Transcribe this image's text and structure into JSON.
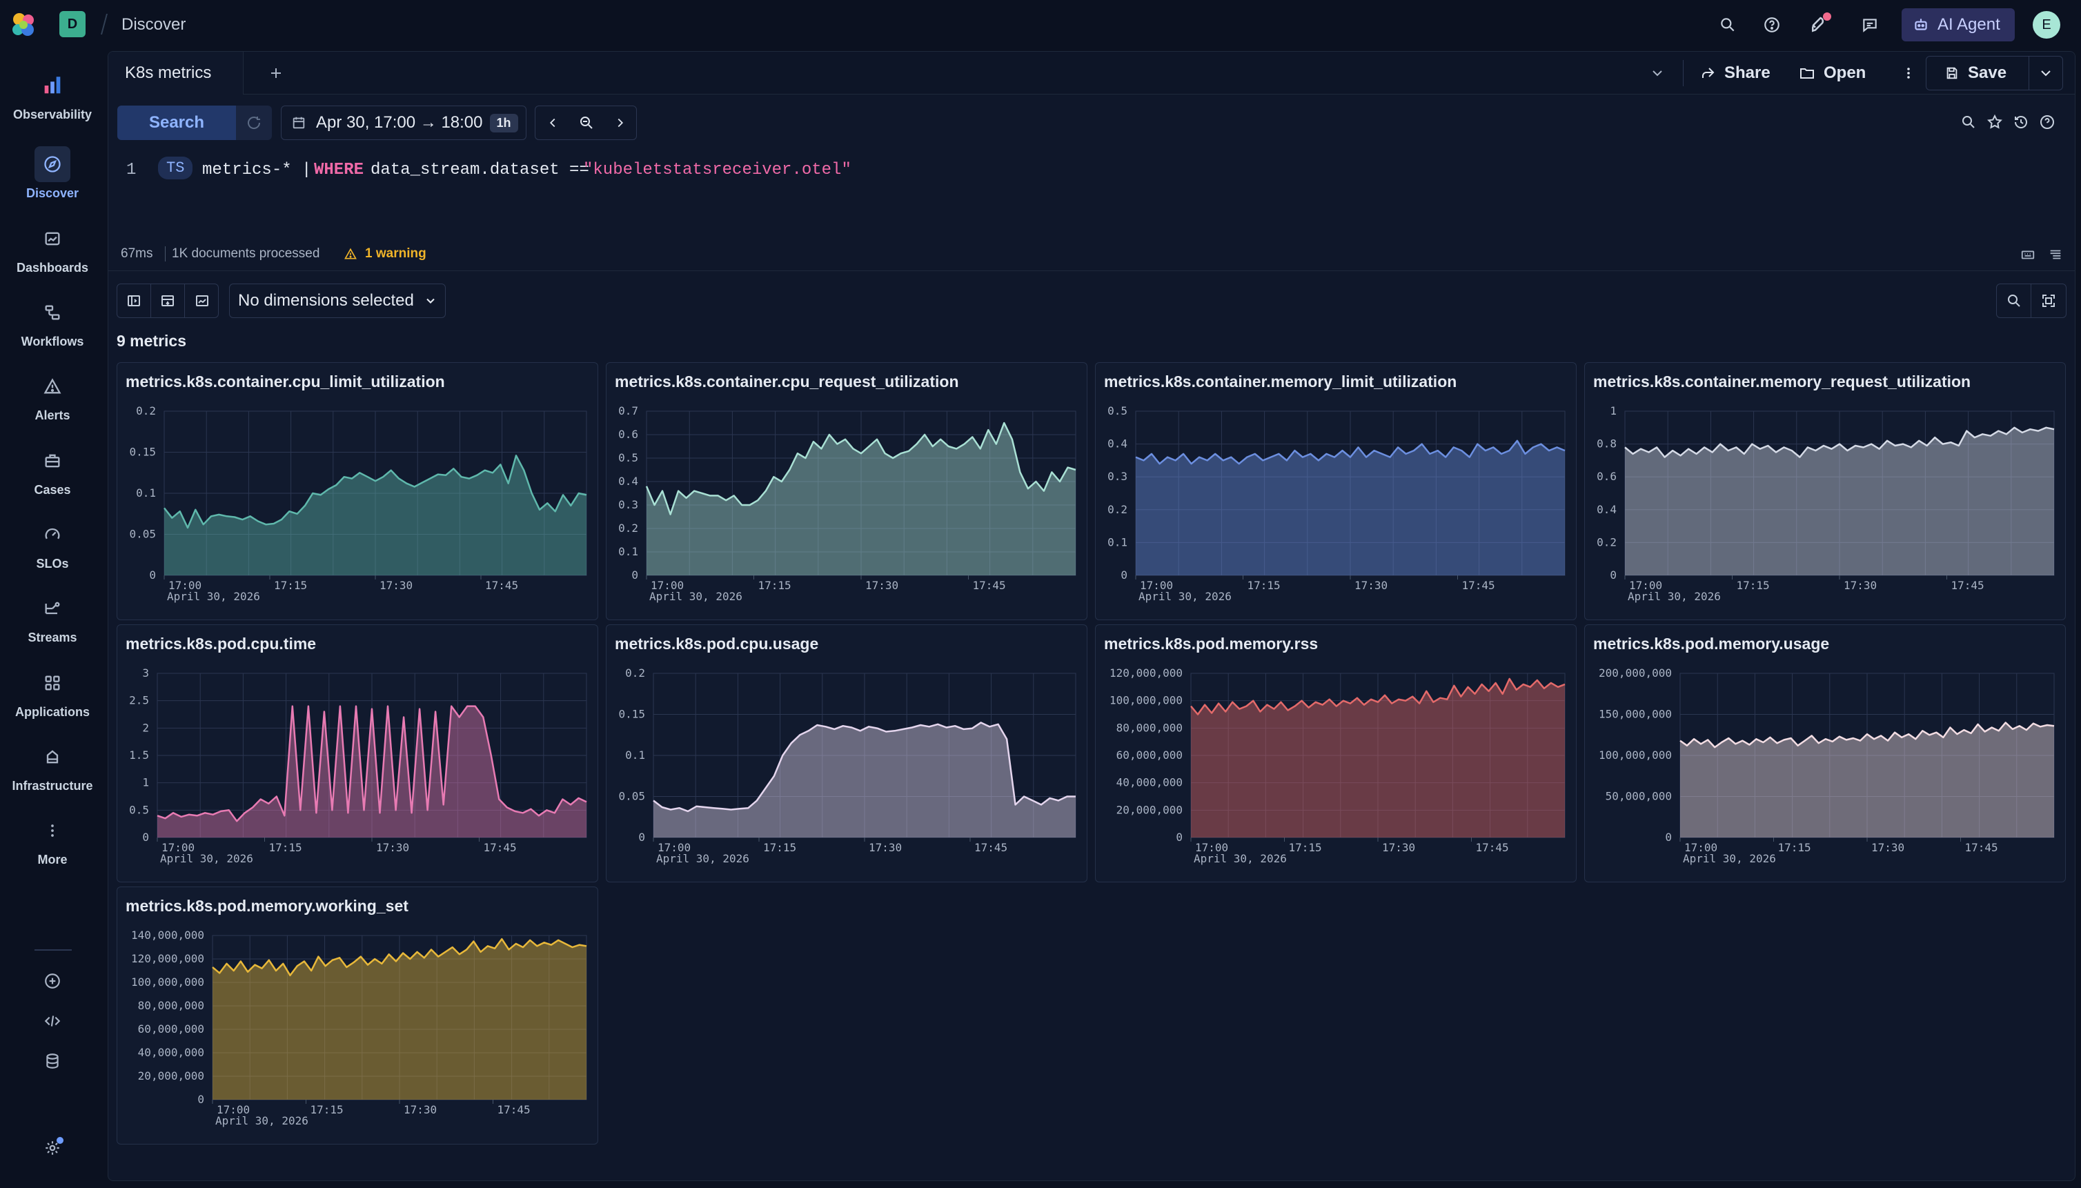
{
  "top": {
    "space_letter": "D",
    "breadcrumb": "Discover",
    "ai_agent": "AI Agent",
    "avatar_letter": "E"
  },
  "nav": [
    {
      "label": "Observability",
      "icon": "observability-icon"
    },
    {
      "label": "Discover",
      "icon": "discover-icon"
    },
    {
      "label": "Dashboards",
      "icon": "dashboards-icon"
    },
    {
      "label": "Workflows",
      "icon": "workflows-icon"
    },
    {
      "label": "Alerts",
      "icon": "alerts-icon"
    },
    {
      "label": "Cases",
      "icon": "cases-icon"
    },
    {
      "label": "SLOs",
      "icon": "slos-icon"
    },
    {
      "label": "Streams",
      "icon": "streams-icon"
    },
    {
      "label": "Applications",
      "icon": "applications-icon"
    },
    {
      "label": "Infrastructure",
      "icon": "infrastructure-icon"
    },
    {
      "label": "More",
      "icon": "more-icon"
    }
  ],
  "tabs": {
    "active": "K8s metrics"
  },
  "toolbar": {
    "share": "Share",
    "open": "Open",
    "save": "Save"
  },
  "query_bar": {
    "search": "Search",
    "time_range": "Apr 30, 17:00 → 18:00",
    "duration": "1h"
  },
  "query": {
    "line_number": "1",
    "command": "TS",
    "source": "metrics-* |",
    "keyword": "WHERE",
    "field": "data_stream.dataset ==",
    "value": "\"kubeletstatsreceiver.otel\""
  },
  "status": {
    "time": "67ms",
    "docs": "1K documents processed",
    "warning": "1 warning"
  },
  "dimensions": {
    "selected": "No dimensions selected"
  },
  "metrics_count": "9 metrics",
  "colors": {
    "teal": "#5fb8ac",
    "mint": "#a9e0d4",
    "blue": "#6c8fe0",
    "gray": "#d5dae6",
    "pink": "#e87bb3",
    "lilac": "#e5d6ee",
    "red": "#e46a6a",
    "rose": "#f3dde3",
    "gold": "#e8b83a",
    "accent": "#6e9cff",
    "warning": "#f0b429"
  },
  "chart_data": [
    {
      "type": "area",
      "title": "metrics.k8s.container.cpu_limit_utilization",
      "x_ticks": [
        "17:00",
        "17:15",
        "17:30",
        "17:45"
      ],
      "x_date": "April 30, 2026",
      "y_ticks": [
        "0",
        "0.05",
        "0.1",
        "0.15",
        "0.2"
      ],
      "ylim": [
        0,
        0.2
      ],
      "color": "teal",
      "values": [
        0.082,
        0.07,
        0.078,
        0.058,
        0.08,
        0.062,
        0.072,
        0.074,
        0.072,
        0.071,
        0.068,
        0.072,
        0.066,
        0.062,
        0.063,
        0.068,
        0.078,
        0.075,
        0.085,
        0.1,
        0.098,
        0.105,
        0.11,
        0.12,
        0.118,
        0.125,
        0.12,
        0.115,
        0.12,
        0.128,
        0.118,
        0.112,
        0.108,
        0.113,
        0.118,
        0.123,
        0.122,
        0.13,
        0.12,
        0.118,
        0.122,
        0.128,
        0.125,
        0.135,
        0.112,
        0.146,
        0.128,
        0.1,
        0.08,
        0.088,
        0.078,
        0.098,
        0.085,
        0.1,
        0.098
      ]
    },
    {
      "type": "area",
      "title": "metrics.k8s.container.cpu_request_utilization",
      "x_ticks": [
        "17:00",
        "17:15",
        "17:30",
        "17:45"
      ],
      "x_date": "April 30, 2026",
      "y_ticks": [
        "0",
        "0.1",
        "0.2",
        "0.3",
        "0.4",
        "0.5",
        "0.6",
        "0.7"
      ],
      "ylim": [
        0,
        0.7
      ],
      "color": "mint",
      "values": [
        0.38,
        0.3,
        0.36,
        0.26,
        0.36,
        0.33,
        0.36,
        0.35,
        0.34,
        0.34,
        0.32,
        0.34,
        0.3,
        0.3,
        0.32,
        0.36,
        0.42,
        0.4,
        0.45,
        0.52,
        0.5,
        0.57,
        0.54,
        0.6,
        0.56,
        0.58,
        0.54,
        0.52,
        0.55,
        0.58,
        0.52,
        0.5,
        0.52,
        0.53,
        0.56,
        0.6,
        0.55,
        0.58,
        0.55,
        0.54,
        0.56,
        0.59,
        0.54,
        0.62,
        0.56,
        0.65,
        0.58,
        0.44,
        0.37,
        0.4,
        0.36,
        0.44,
        0.4,
        0.46,
        0.45
      ]
    },
    {
      "type": "area",
      "title": "metrics.k8s.container.memory_limit_utilization",
      "x_ticks": [
        "17:00",
        "17:15",
        "17:30",
        "17:45"
      ],
      "x_date": "April 30, 2026",
      "y_ticks": [
        "0",
        "0.1",
        "0.2",
        "0.3",
        "0.4",
        "0.5"
      ],
      "ylim": [
        0,
        0.5
      ],
      "color": "blue",
      "values": [
        0.36,
        0.35,
        0.37,
        0.34,
        0.36,
        0.35,
        0.37,
        0.34,
        0.36,
        0.35,
        0.37,
        0.35,
        0.36,
        0.34,
        0.36,
        0.37,
        0.35,
        0.36,
        0.37,
        0.35,
        0.38,
        0.36,
        0.37,
        0.35,
        0.37,
        0.36,
        0.38,
        0.36,
        0.39,
        0.36,
        0.38,
        0.37,
        0.36,
        0.39,
        0.37,
        0.38,
        0.4,
        0.37,
        0.38,
        0.36,
        0.39,
        0.38,
        0.36,
        0.4,
        0.38,
        0.39,
        0.37,
        0.38,
        0.41,
        0.37,
        0.39,
        0.4,
        0.38,
        0.39,
        0.38
      ]
    },
    {
      "type": "area",
      "title": "metrics.k8s.container.memory_request_utilization",
      "x_ticks": [
        "17:00",
        "17:15",
        "17:30",
        "17:45"
      ],
      "x_date": "April 30, 2026",
      "y_ticks": [
        "0",
        "0.2",
        "0.4",
        "0.6",
        "0.8",
        "1"
      ],
      "ylim": [
        0,
        1
      ],
      "color": "gray",
      "values": [
        0.78,
        0.74,
        0.77,
        0.75,
        0.78,
        0.72,
        0.76,
        0.73,
        0.77,
        0.74,
        0.78,
        0.75,
        0.8,
        0.76,
        0.78,
        0.74,
        0.8,
        0.77,
        0.79,
        0.75,
        0.78,
        0.76,
        0.72,
        0.78,
        0.76,
        0.79,
        0.77,
        0.8,
        0.76,
        0.79,
        0.78,
        0.8,
        0.77,
        0.82,
        0.79,
        0.8,
        0.78,
        0.82,
        0.79,
        0.84,
        0.8,
        0.81,
        0.79,
        0.88,
        0.84,
        0.86,
        0.85,
        0.88,
        0.86,
        0.9,
        0.87,
        0.89,
        0.88,
        0.9,
        0.89
      ]
    },
    {
      "type": "area",
      "title": "metrics.k8s.pod.cpu.time",
      "x_ticks": [
        "17:00",
        "17:15",
        "17:30",
        "17:45"
      ],
      "x_date": "April 30, 2026",
      "y_ticks": [
        "0",
        "0.5",
        "1",
        "1.5",
        "2",
        "2.5",
        "3"
      ],
      "ylim": [
        0,
        3
      ],
      "color": "pink",
      "values": [
        0.4,
        0.35,
        0.45,
        0.38,
        0.42,
        0.4,
        0.45,
        0.42,
        0.48,
        0.5,
        0.3,
        0.45,
        0.55,
        0.7,
        0.62,
        0.75,
        0.4,
        2.4,
        0.5,
        2.4,
        0.45,
        2.3,
        0.5,
        2.4,
        0.45,
        2.4,
        0.5,
        2.35,
        0.45,
        2.4,
        0.5,
        2.2,
        0.45,
        2.35,
        0.5,
        2.3,
        0.6,
        2.4,
        2.2,
        2.4,
        2.4,
        2.2,
        1.5,
        0.7,
        0.55,
        0.48,
        0.45,
        0.52,
        0.4,
        0.5,
        0.45,
        0.7,
        0.6,
        0.72,
        0.65
      ]
    },
    {
      "type": "area",
      "title": "metrics.k8s.pod.cpu.usage",
      "x_ticks": [
        "17:00",
        "17:15",
        "17:30",
        "17:45"
      ],
      "x_date": "April 30, 2026",
      "y_ticks": [
        "0",
        "0.05",
        "0.1",
        "0.15",
        "0.2"
      ],
      "ylim": [
        0,
        0.2
      ],
      "color": "lilac",
      "values": [
        0.045,
        0.037,
        0.034,
        0.036,
        0.032,
        0.038,
        0.037,
        0.036,
        0.035,
        0.034,
        0.035,
        0.036,
        0.045,
        0.06,
        0.075,
        0.1,
        0.115,
        0.125,
        0.13,
        0.137,
        0.135,
        0.132,
        0.136,
        0.134,
        0.13,
        0.135,
        0.133,
        0.129,
        0.13,
        0.132,
        0.134,
        0.137,
        0.135,
        0.138,
        0.134,
        0.136,
        0.132,
        0.133,
        0.14,
        0.135,
        0.138,
        0.12,
        0.04,
        0.05,
        0.045,
        0.04,
        0.048,
        0.045,
        0.05,
        0.05
      ]
    },
    {
      "type": "area",
      "title": "metrics.k8s.pod.memory.rss",
      "x_ticks": [
        "17:00",
        "17:15",
        "17:30",
        "17:45"
      ],
      "x_date": "April 30, 2026",
      "y_ticks": [
        "0",
        "20,000,000",
        "40,000,000",
        "60,000,000",
        "80,000,000",
        "100,000,000",
        "120,000,000"
      ],
      "ylim": [
        0,
        120000000
      ],
      "color": "red",
      "values": [
        96000000,
        90000000,
        97000000,
        91000000,
        98000000,
        92000000,
        99000000,
        94000000,
        96000000,
        100000000,
        92000000,
        97000000,
        94000000,
        99000000,
        93000000,
        96000000,
        100000000,
        95000000,
        99000000,
        97000000,
        101000000,
        96000000,
        100000000,
        98000000,
        102000000,
        97000000,
        101000000,
        99000000,
        104000000,
        98000000,
        101000000,
        100000000,
        103000000,
        98000000,
        107000000,
        99000000,
        102000000,
        101000000,
        111000000,
        103000000,
        110000000,
        105000000,
        112000000,
        107000000,
        113000000,
        105000000,
        116000000,
        108000000,
        112000000,
        110000000,
        115000000,
        109000000,
        113000000,
        110000000,
        112000000
      ]
    },
    {
      "type": "area",
      "title": "metrics.k8s.pod.memory.usage",
      "x_ticks": [
        "17:00",
        "17:15",
        "17:30",
        "17:45"
      ],
      "x_date": "April 30, 2026",
      "y_ticks": [
        "0",
        "50,000,000",
        "100,000,000",
        "150,000,000",
        "200,000,000"
      ],
      "ylim": [
        0,
        200000000
      ],
      "color": "rose",
      "values": [
        118000000,
        112000000,
        120000000,
        114000000,
        119000000,
        110000000,
        116000000,
        121000000,
        114000000,
        118000000,
        113000000,
        120000000,
        116000000,
        122000000,
        115000000,
        119000000,
        121000000,
        112000000,
        118000000,
        124000000,
        115000000,
        120000000,
        117000000,
        123000000,
        119000000,
        121000000,
        118000000,
        126000000,
        120000000,
        124000000,
        118000000,
        128000000,
        122000000,
        126000000,
        120000000,
        130000000,
        125000000,
        128000000,
        122000000,
        134000000,
        126000000,
        131000000,
        127000000,
        138000000,
        129000000,
        134000000,
        130000000,
        140000000,
        132000000,
        136000000,
        131000000,
        139000000,
        135000000,
        137000000,
        136000000
      ]
    },
    {
      "type": "area",
      "title": "metrics.k8s.pod.memory.working_set",
      "x_ticks": [
        "17:00",
        "17:15",
        "17:30",
        "17:45"
      ],
      "x_date": "April 30, 2026",
      "y_ticks": [
        "0",
        "20,000,000",
        "40,000,000",
        "60,000,000",
        "80,000,000",
        "100,000,000",
        "120,000,000",
        "140,000,000"
      ],
      "ylim": [
        0,
        140000000
      ],
      "color": "gold",
      "values": [
        113000000,
        108000000,
        116000000,
        110000000,
        118000000,
        109000000,
        115000000,
        112000000,
        119000000,
        110000000,
        116000000,
        106000000,
        114000000,
        118000000,
        110000000,
        122000000,
        114000000,
        119000000,
        121000000,
        113000000,
        117000000,
        122000000,
        115000000,
        120000000,
        116000000,
        124000000,
        118000000,
        125000000,
        120000000,
        126000000,
        121000000,
        128000000,
        122000000,
        126000000,
        130000000,
        124000000,
        128000000,
        135000000,
        126000000,
        131000000,
        129000000,
        137000000,
        128000000,
        133000000,
        130000000,
        136000000,
        131000000,
        134000000,
        132000000,
        136000000,
        133000000,
        130000000,
        132000000,
        131000000
      ]
    }
  ]
}
